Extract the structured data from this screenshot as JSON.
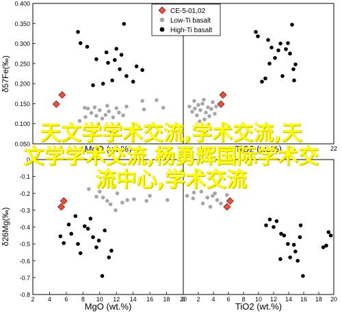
{
  "legend": {
    "placement": "top-center",
    "entries": [
      {
        "label": "CE-5-01,02",
        "marker": "diamond",
        "color": "#e8503a"
      },
      {
        "label": "Low-Ti basalt",
        "marker": "circle",
        "color": "#a6a6a6"
      },
      {
        "label": "High-Ti basalt",
        "marker": "circle",
        "color": "#000000"
      }
    ]
  },
  "overlay_text": [
    "天文学学术交流,学术交流,天",
    "文学学术交流,杨勇辉国际学术交",
    "流中心,学术交流"
  ],
  "colors": {
    "ce5": "#e8503a",
    "low_ti": "#a6a6a6",
    "high_ti": "#000000",
    "axis": "#000000"
  },
  "chart_data": [
    {
      "type": "scatter",
      "panel": "top-left",
      "xlabel": "MgO (wt.%)",
      "ylabel": "δ57Fe(‰)",
      "xlim": [
        2,
        20
      ],
      "ylim": [
        0.05,
        0.4
      ],
      "xticks": [],
      "yticks": [
        "0.050",
        "0.100",
        "0.150",
        "0.200",
        "0.250",
        "0.300",
        "0.350",
        "0.400"
      ],
      "series": [
        {
          "name": "CE-5-01,02",
          "points": [
            [
              4.8,
              0.149
            ],
            [
              5.5,
              0.172
            ]
          ]
        },
        {
          "name": "Low-Ti basalt",
          "points": [
            [
              7.6,
              0.107
            ],
            [
              8.3,
              0.117
            ],
            [
              8.6,
              0.138
            ],
            [
              9.0,
              0.127
            ],
            [
              9.4,
              0.141
            ],
            [
              9.6,
              0.12
            ],
            [
              10.0,
              0.134
            ],
            [
              10.3,
              0.113
            ],
            [
              10.7,
              0.122
            ],
            [
              10.9,
              0.145
            ],
            [
              11.1,
              0.131
            ],
            [
              11.4,
              0.08
            ],
            [
              11.6,
              0.116
            ],
            [
              12.0,
              0.139
            ],
            [
              12.3,
              0.128
            ],
            [
              12.8,
              0.121
            ],
            [
              13.2,
              0.143
            ],
            [
              15.1,
              0.157
            ],
            [
              15.3,
              0.136
            ],
            [
              15.9,
              0.094
            ],
            [
              16.8,
              0.159
            ],
            [
              17.6,
              0.14
            ],
            [
              8.2,
              0.14
            ],
            [
              9.8,
              0.1
            ]
          ]
        },
        {
          "name": "High-Ti basalt",
          "points": [
            [
              7.4,
              0.329
            ],
            [
              7.7,
              0.301
            ],
            [
              8.5,
              0.292
            ],
            [
              9.2,
              0.196
            ],
            [
              9.6,
              0.261
            ],
            [
              10.4,
              0.2
            ],
            [
              10.8,
              0.278
            ],
            [
              11.0,
              0.252
            ],
            [
              11.5,
              0.208
            ],
            [
              11.8,
              0.259
            ],
            [
              12.0,
              0.287
            ],
            [
              12.4,
              0.236
            ],
            [
              12.6,
              0.272
            ],
            [
              12.9,
              0.349
            ],
            [
              13.2,
              0.219
            ],
            [
              14.0,
              0.205
            ],
            [
              14.4,
              0.243
            ],
            [
              15.1,
              0.234
            ]
          ]
        }
      ]
    },
    {
      "type": "scatter",
      "panel": "top-right",
      "xlabel": "TiO2 (wt.%)",
      "ylabel": "",
      "xlim": [
        0,
        22
      ],
      "ylim": [
        0.05,
        0.4
      ],
      "xticks": [
        "22"
      ],
      "yticks": [],
      "series": [
        {
          "name": "CE-5-01,02",
          "points": [
            [
              5.5,
              0.149
            ],
            [
              5.8,
              0.172
            ]
          ]
        },
        {
          "name": "Low-Ti basalt",
          "points": [
            [
              0.9,
              0.143
            ],
            [
              1.3,
              0.13
            ],
            [
              1.7,
              0.138
            ],
            [
              2.0,
              0.121
            ],
            [
              2.2,
              0.147
            ],
            [
              2.5,
              0.134
            ],
            [
              2.8,
              0.15
            ],
            [
              3.1,
              0.111
            ],
            [
              3.3,
              0.128
            ],
            [
              3.6,
              0.141
            ],
            [
              3.8,
              0.119
            ],
            [
              4.1,
              0.137
            ],
            [
              4.3,
              0.154
            ],
            [
              4.6,
              0.125
            ],
            [
              4.8,
              0.143
            ],
            [
              2.4,
              0.106
            ],
            [
              3.0,
              0.16
            ],
            [
              1.6,
              0.157
            ]
          ]
        },
        {
          "name": "High-Ti basalt",
          "points": [
            [
              10.6,
              0.329
            ],
            [
              10.9,
              0.318
            ],
            [
              12.4,
              0.309
            ],
            [
              12.6,
              0.25
            ],
            [
              12.9,
              0.29
            ],
            [
              13.4,
              0.264
            ],
            [
              13.9,
              0.283
            ],
            [
              14.2,
              0.3
            ],
            [
              14.5,
              0.219
            ],
            [
              15.0,
              0.286
            ],
            [
              15.3,
              0.301
            ],
            [
              15.6,
              0.275
            ],
            [
              15.9,
              0.347
            ],
            [
              16.1,
              0.236
            ],
            [
              16.4,
              0.248
            ],
            [
              11.5,
              0.205
            ],
            [
              12.0,
              0.213
            ],
            [
              16.2,
              0.208
            ]
          ]
        }
      ]
    },
    {
      "type": "scatter",
      "panel": "bottom-left",
      "xlabel": "MgO (wt.%)",
      "ylabel": "δ26Mg(‰)",
      "xlim": [
        2,
        20
      ],
      "ylim": [
        -0.8,
        0
      ],
      "xticks": [
        "2",
        "4",
        "6",
        "8",
        "10",
        "12",
        "14",
        "16",
        "18",
        "20"
      ],
      "yticks": [
        "-0.8",
        "-0.7",
        "-0.6",
        "-0.5",
        "-0.4",
        "-0.3",
        "-0.2",
        "-0.1",
        "0"
      ],
      "series": [
        {
          "name": "CE-5-01,02",
          "points": [
            [
              5.4,
              -0.28
            ],
            [
              5.7,
              -0.245
            ]
          ]
        },
        {
          "name": "Low-Ti basalt",
          "points": [
            [
              8.7,
              -0.175
            ],
            [
              9.6,
              -0.22
            ],
            [
              10.4,
              -0.225
            ],
            [
              10.9,
              -0.245
            ],
            [
              11.3,
              -0.265
            ],
            [
              11.9,
              -0.3
            ],
            [
              12.1,
              -0.2
            ],
            [
              12.7,
              -0.255
            ],
            [
              13.3,
              -0.24
            ],
            [
              14.1,
              -0.235
            ],
            [
              15.6,
              -0.245
            ],
            [
              16.0,
              -0.215
            ],
            [
              18.1,
              -0.24
            ],
            [
              10.0,
              -0.19
            ],
            [
              11.6,
              -0.16
            ]
          ]
        },
        {
          "name": "High-Ti basalt",
          "points": [
            [
              5.3,
              -0.455
            ],
            [
              5.7,
              -0.495
            ],
            [
              6.3,
              -0.385
            ],
            [
              6.6,
              -0.44
            ],
            [
              7.1,
              -0.335
            ],
            [
              7.4,
              -0.5
            ],
            [
              7.7,
              -0.555
            ],
            [
              8.2,
              -0.395
            ],
            [
              8.6,
              -0.41
            ],
            [
              8.9,
              -0.35
            ],
            [
              9.2,
              -0.46
            ],
            [
              9.6,
              -0.52
            ],
            [
              9.9,
              -0.48
            ],
            [
              10.3,
              -0.69
            ],
            [
              10.6,
              -0.42
            ],
            [
              11.1,
              -0.58
            ],
            [
              11.4,
              -0.54
            ]
          ]
        }
      ]
    },
    {
      "type": "scatter",
      "panel": "bottom-right",
      "xlabel": "TiO2 (wt.%)",
      "ylabel": "",
      "xlim": [
        0,
        20
      ],
      "ylim": [
        -0.8,
        0
      ],
      "xticks": [
        "0",
        "2",
        "4",
        "6",
        "8",
        "10",
        "12",
        "14",
        "16",
        "18",
        "20"
      ],
      "yticks": [],
      "series": [
        {
          "name": "CE-5-01,02",
          "points": [
            [
              5.8,
              -0.28
            ],
            [
              6.2,
              -0.245
            ]
          ]
        },
        {
          "name": "Low-Ti basalt",
          "points": [
            [
              0.5,
              -0.215
            ],
            [
              1.4,
              -0.195
            ],
            [
              2.4,
              -0.19
            ],
            [
              3.2,
              -0.225
            ],
            [
              3.9,
              -0.215
            ],
            [
              4.5,
              -0.24
            ],
            [
              5.0,
              -0.26
            ],
            [
              2.6,
              -0.26
            ],
            [
              3.6,
              -0.28
            ],
            [
              1.3,
              -0.23
            ],
            [
              4.2,
              -0.2
            ],
            [
              5.8,
              -0.21
            ]
          ]
        },
        {
          "name": "High-Ti basalt",
          "points": [
            [
              11.0,
              -0.39
            ],
            [
              11.5,
              -0.355
            ],
            [
              12.0,
              -0.4
            ],
            [
              12.4,
              -0.365
            ],
            [
              13.0,
              -0.44
            ],
            [
              13.4,
              -0.45
            ],
            [
              13.9,
              -0.5
            ],
            [
              14.2,
              -0.58
            ],
            [
              14.7,
              -0.505
            ],
            [
              14.9,
              -0.545
            ],
            [
              15.2,
              -0.6
            ],
            [
              15.5,
              -0.46
            ],
            [
              15.6,
              -0.39
            ],
            [
              15.9,
              -0.69
            ],
            [
              18.6,
              -0.52
            ],
            [
              19.0,
              -0.51
            ],
            [
              19.3,
              -0.43
            ],
            [
              19.6,
              -0.45
            ],
            [
              12.9,
              -0.59
            ]
          ]
        }
      ]
    }
  ]
}
